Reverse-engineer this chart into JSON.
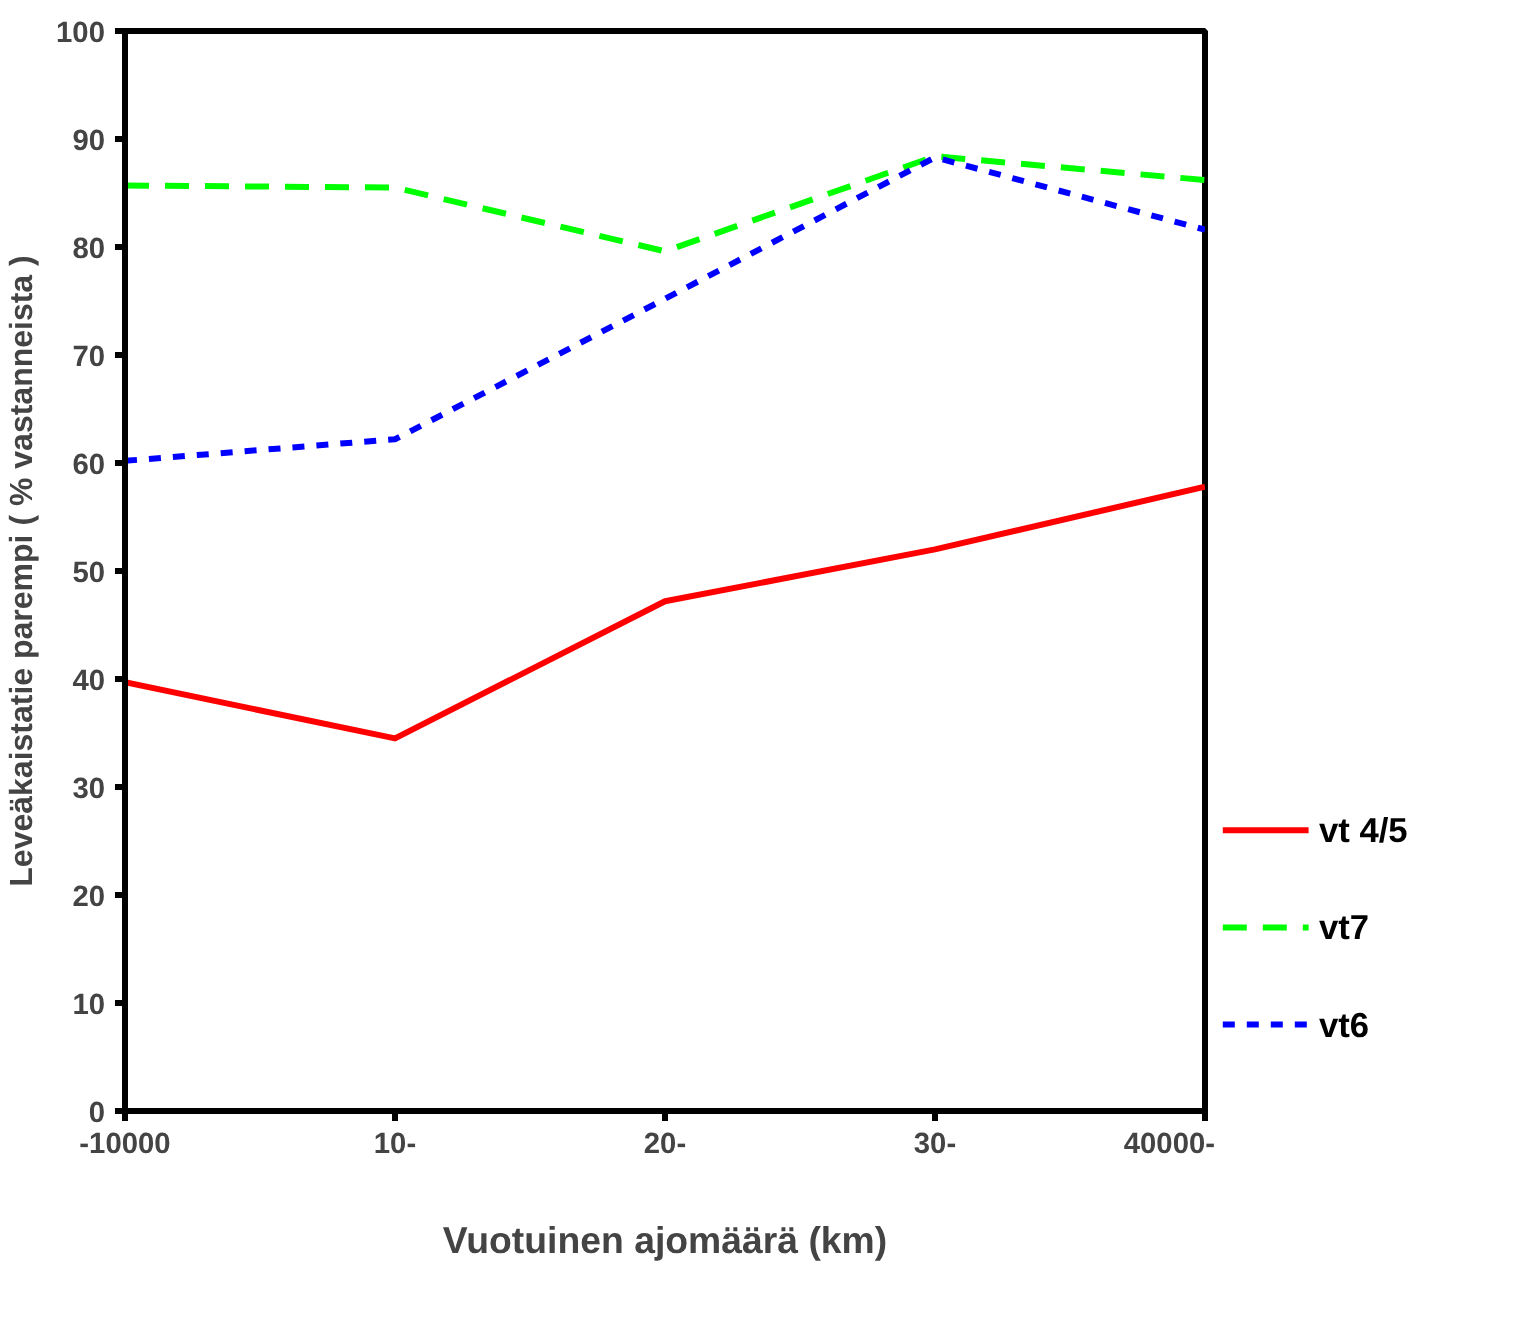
{
  "chart_data": {
    "type": "line",
    "xlabel": "Vuotuinen ajomäärä (km)",
    "ylabel": "Leveäkaistatie parempi ( % vastanneista )",
    "categories": [
      "-10000",
      "10-",
      "20-",
      "30-",
      "40000-"
    ],
    "series": [
      {
        "name": "vt 4/5",
        "color": "#ff0000",
        "line_style": "solid",
        "values": [
          39.7,
          34.5,
          47.2,
          52,
          57.8
        ]
      },
      {
        "name": "vt7",
        "color": "#00ff00",
        "line_style": "dashed",
        "values": [
          85.7,
          85.5,
          79.6,
          88.4,
          86.2
        ]
      },
      {
        "name": "vt6",
        "color": "#0000ff",
        "line_style": "dotted",
        "values": [
          60.2,
          62.2,
          75.2,
          88.3,
          81.6
        ]
      }
    ],
    "ylim": [
      0,
      100
    ],
    "yticks": [
      0,
      10,
      20,
      30,
      40,
      50,
      60,
      70,
      80,
      90,
      100
    ],
    "grid": false,
    "legend": "right",
    "marker": "none"
  }
}
